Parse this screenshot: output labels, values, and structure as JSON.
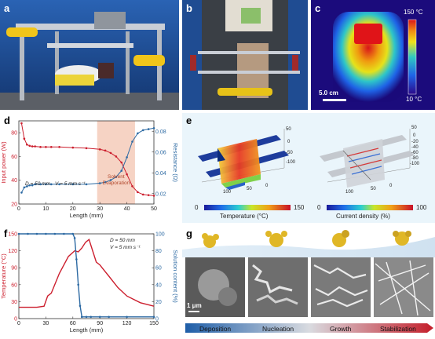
{
  "panels": {
    "a": "a",
    "b": "b",
    "c": "c",
    "d": "d",
    "e": "e",
    "f": "f",
    "g": "g"
  },
  "panel_c": {
    "scale_bar": "5.0 cm",
    "cbar_max": "150 °C",
    "cbar_min": "10 °C"
  },
  "panel_d": {
    "ylabel_left": "Input power (W)",
    "ylabel_right": "Resistance (Ω)",
    "xlabel": "Length (mm)",
    "annot_D": "D = 50 mm",
    "annot_V": "V = 5 mm s⁻¹",
    "region_label": "Solvent",
    "region_label2": "Evaporation",
    "xticks": [
      "0",
      "10",
      "20",
      "30",
      "40",
      "50"
    ],
    "yticks_left": [
      "20",
      "40",
      "60",
      "80"
    ],
    "yticks_right": [
      "0.02",
      "0.04",
      "0.06",
      "0.08"
    ]
  },
  "panel_e": {
    "cbar1_label": "Temperature (°C)",
    "cbar1_min": "0",
    "cbar1_max": "150",
    "cbar2_label": "Current density  (%)",
    "cbar2_min": "0",
    "cbar2_max": "100",
    "axis_ticks_1": [
      "50",
      "0",
      "-50",
      "-100",
      "100",
      "50",
      "0"
    ],
    "axis_ticks_2": [
      "50",
      "0",
      "-20",
      "-40",
      "-60",
      "-80",
      "-100",
      "100",
      "50",
      "0"
    ]
  },
  "panel_f": {
    "ylabel_left": "Temperature (°C)",
    "ylabel_right": "Solution content (%)",
    "xlabel": "Length (mm)",
    "annot_D": "D = 50 mm",
    "annot_V": "V = 5 mm s⁻¹",
    "xticks": [
      "0",
      "30",
      "60",
      "90",
      "120",
      "150"
    ],
    "yticks_left": [
      "0",
      "30",
      "60",
      "90",
      "120",
      "150"
    ],
    "yticks_right": [
      "0",
      "20",
      "40",
      "60",
      "80",
      "100"
    ]
  },
  "panel_g": {
    "scale_bar": "1 μm",
    "stages": [
      "Deposition",
      "Nucleation",
      "Growth",
      "Stabilization"
    ]
  },
  "colors": {
    "red": "#cc1f2e",
    "blue": "#2d6aa3",
    "evap": "#f6d3c4"
  },
  "chart_data": [
    {
      "type": "line",
      "title": "",
      "xlabel": "Length (mm)",
      "xlim": [
        0,
        50
      ],
      "series": [
        {
          "name": "Input power (W)",
          "axis": "left",
          "ylim": [
            20,
            90
          ],
          "x": [
            1,
            2,
            3,
            4,
            5,
            6,
            8,
            10,
            12,
            15,
            20,
            25,
            30,
            32,
            34,
            36,
            38,
            40,
            42,
            44,
            46,
            48,
            50
          ],
          "y": [
            88,
            75,
            70,
            69,
            68.5,
            68.5,
            68,
            68,
            68,
            68,
            67.5,
            67,
            66,
            65,
            63,
            60,
            55,
            45,
            35,
            30,
            28,
            27.5,
            27
          ]
        },
        {
          "name": "Resistance (Ω)",
          "axis": "right",
          "ylim": [
            0.01,
            0.09
          ],
          "x": [
            1,
            2,
            3,
            4,
            5,
            6,
            8,
            10,
            12,
            15,
            20,
            25,
            30,
            32,
            34,
            36,
            38,
            40,
            42,
            44,
            46,
            48,
            50
          ],
          "y": [
            0.021,
            0.026,
            0.027,
            0.028,
            0.028,
            0.029,
            0.029,
            0.029,
            0.029,
            0.029,
            0.029,
            0.029,
            0.03,
            0.031,
            0.033,
            0.036,
            0.042,
            0.055,
            0.07,
            0.078,
            0.081,
            0.082,
            0.083
          ]
        }
      ],
      "shaded_region_x": [
        29,
        43
      ]
    },
    {
      "type": "line",
      "title": "",
      "xlabel": "Length (mm)",
      "xlim": [
        0,
        150
      ],
      "series": [
        {
          "name": "Temperature (°C)",
          "axis": "left",
          "ylim": [
            0,
            150
          ],
          "x": [
            0,
            20,
            28,
            32,
            36,
            45,
            55,
            62,
            66,
            70,
            74,
            78,
            82,
            86,
            90,
            95,
            100,
            110,
            120,
            135,
            150
          ],
          "y": [
            20,
            20,
            22,
            40,
            45,
            80,
            110,
            120,
            118,
            125,
            135,
            140,
            120,
            100,
            95,
            85,
            75,
            55,
            40,
            28,
            22
          ]
        },
        {
          "name": "Solution content (%)",
          "axis": "right",
          "ylim": [
            0,
            100
          ],
          "x": [
            0,
            10,
            20,
            30,
            40,
            50,
            60,
            62,
            64,
            66,
            68,
            70,
            75,
            80,
            90,
            100,
            120,
            150
          ],
          "y": [
            100,
            100,
            100,
            100,
            100,
            100,
            100,
            95,
            70,
            40,
            15,
            2,
            2,
            2,
            2,
            2,
            2,
            2
          ]
        }
      ]
    }
  ]
}
